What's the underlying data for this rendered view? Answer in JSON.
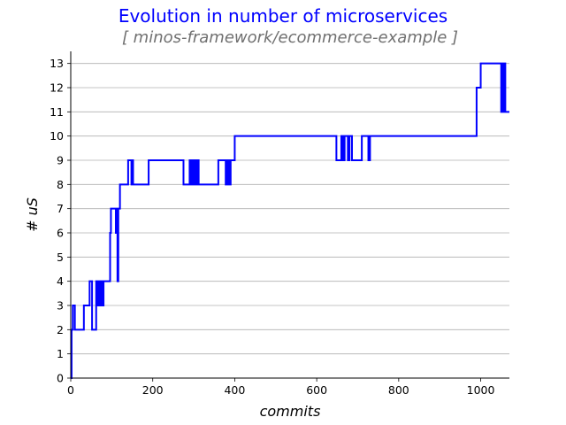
{
  "chart_data": {
    "type": "line",
    "title": "Evolution in number of microservices",
    "subtitle": "[ minos-framework/ecommerce-example ]",
    "xlabel": "commits",
    "ylabel": "# uS",
    "xlim": [
      0,
      1070
    ],
    "ylim": [
      0,
      13.5
    ],
    "xticks": [
      0,
      200,
      400,
      600,
      800,
      1000
    ],
    "yticks": [
      0,
      1,
      2,
      3,
      4,
      5,
      6,
      7,
      8,
      9,
      10,
      11,
      12,
      13
    ],
    "grid": "horizontal",
    "colors": {
      "line": "#0000ff",
      "title": "#0000ff",
      "subtitle": "#707070",
      "grid": "#b0b0b0"
    },
    "series": [
      {
        "x": [
          0,
          2,
          2,
          5,
          5,
          10,
          10,
          32,
          32,
          46,
          46,
          52,
          52,
          62,
          62,
          64,
          64,
          68,
          68,
          70,
          70,
          74,
          74,
          76,
          76,
          80,
          80,
          96,
          96,
          98,
          98,
          110,
          110,
          112,
          112,
          114,
          114,
          116,
          116,
          118,
          118,
          120,
          120,
          140,
          140,
          148,
          148,
          150,
          150,
          152,
          152,
          190,
          190,
          275,
          275,
          290,
          290,
          292,
          292,
          296,
          296,
          298,
          298,
          302,
          302,
          306,
          306,
          310,
          310,
          312,
          312,
          360,
          360,
          378,
          378,
          382,
          382,
          386,
          386,
          390,
          390,
          400,
          400,
          648,
          648,
          660,
          660,
          664,
          664,
          668,
          668,
          676,
          676,
          680,
          680,
          686,
          686,
          710,
          710,
          726,
          726,
          730,
          730,
          990,
          990,
          1000,
          1000,
          1050,
          1050,
          1052,
          1052,
          1054,
          1054,
          1056,
          1056,
          1060,
          1060,
          1070
        ],
        "y": [
          0,
          0,
          2,
          2,
          3,
          3,
          2,
          2,
          3,
          3,
          4,
          4,
          2,
          2,
          4,
          4,
          3,
          3,
          4,
          4,
          3,
          3,
          4,
          4,
          3,
          3,
          4,
          4,
          6,
          6,
          7,
          7,
          6,
          6,
          7,
          7,
          4,
          4,
          7,
          7,
          7,
          7,
          8,
          8,
          9,
          9,
          8,
          8,
          9,
          9,
          8,
          8,
          9,
          9,
          8,
          8,
          9,
          9,
          8,
          8,
          9,
          9,
          8,
          8,
          9,
          9,
          8,
          8,
          9,
          9,
          8,
          8,
          9,
          9,
          8,
          8,
          9,
          9,
          8,
          8,
          9,
          9,
          10,
          10,
          9,
          9,
          10,
          10,
          9,
          9,
          10,
          10,
          9,
          9,
          10,
          10,
          9,
          9,
          10,
          10,
          9,
          9,
          10,
          10,
          12,
          12,
          13,
          13,
          11,
          11,
          13,
          13,
          11,
          11,
          13,
          13,
          11,
          11
        ]
      }
    ]
  }
}
